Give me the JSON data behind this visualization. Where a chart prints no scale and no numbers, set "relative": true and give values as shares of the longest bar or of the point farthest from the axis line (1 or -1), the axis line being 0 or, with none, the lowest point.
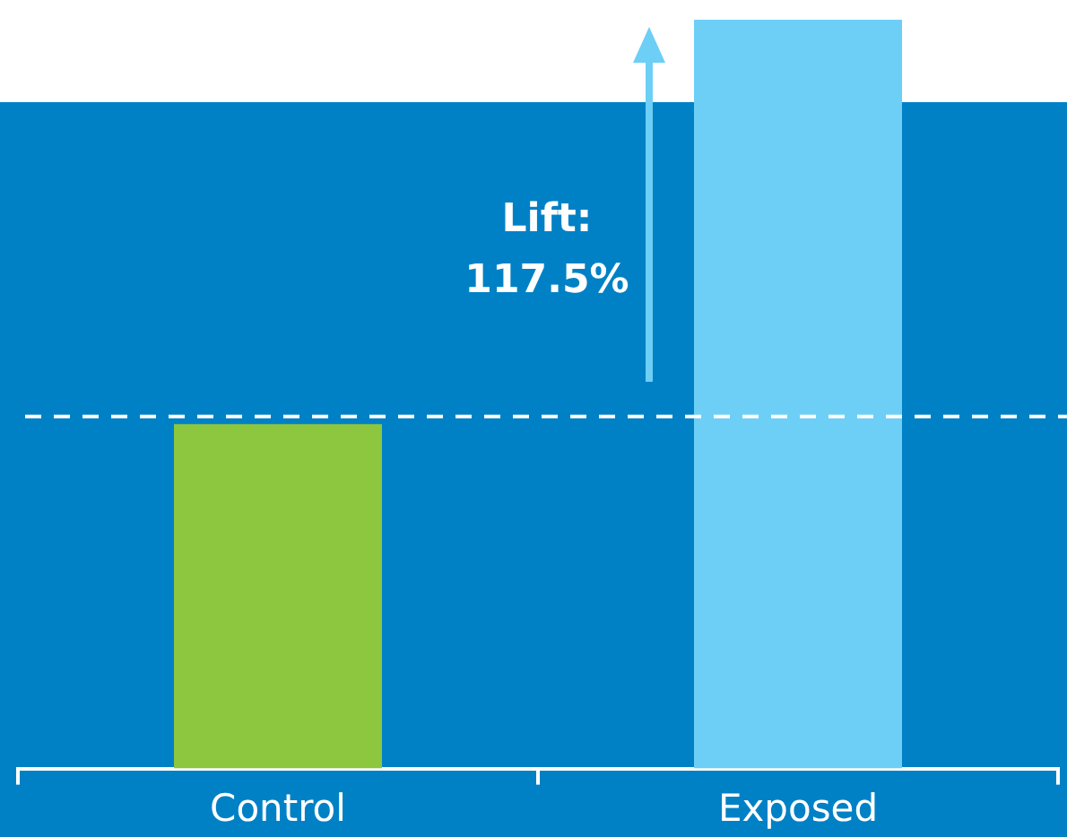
{
  "chart_data": {
    "type": "bar",
    "categories": [
      "Control",
      "Exposed"
    ],
    "values": [
      0.46,
      1
    ],
    "colors": [
      "#8dc63f",
      "#6dcff6"
    ],
    "relative": true,
    "ref_lines": [
      {
        "axis": "y",
        "value": 0.47,
        "color": "#ffffff",
        "line_style": "dashed"
      }
    ],
    "bands": [
      {
        "axis": "y",
        "from": 0,
        "to": 0.89,
        "color": "#0081c6"
      }
    ],
    "annotations": [
      "Lift: 117.5%"
    ]
  }
}
